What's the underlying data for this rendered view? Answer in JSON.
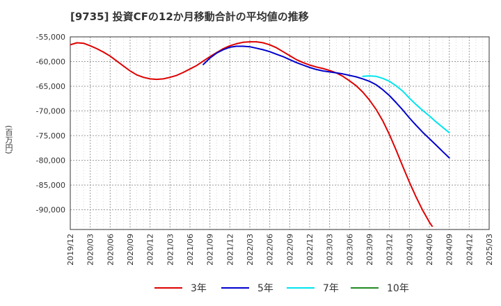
{
  "title": "[9735]  投資CFの12か月移動合計の平均値の推移",
  "unit": "(百万円)",
  "chart_data": {
    "type": "line",
    "title": "[9735]  投資CFの12か月移動合計の平均値の推移",
    "ylabel": "(百万円)",
    "ylim": [
      -95000,
      -55000
    ],
    "grid": true,
    "legend": "bottom",
    "x_ticks": [
      "2019/12",
      "2020/03",
      "2020/06",
      "2020/09",
      "2020/12",
      "2021/03",
      "2021/06",
      "2021/09",
      "2021/12",
      "2022/03",
      "2022/06",
      "2022/09",
      "2022/12",
      "2023/03",
      "2023/06",
      "2023/09",
      "2023/12",
      "2024/03",
      "2024/06",
      "2024/09",
      "2024/12",
      "2025/03"
    ],
    "y_ticks": [
      -55000,
      -60000,
      -65000,
      -70000,
      -75000,
      -80000,
      -85000,
      -90000
    ],
    "y_tick_labels": [
      "-55,000",
      "-60,000",
      "-65,000",
      "-70,000",
      "-75,000",
      "-80,000",
      "-85,000",
      "-90,000"
    ],
    "series": [
      {
        "name": "3年",
        "color": "#dd0000",
        "x": [
          "2019/12",
          "2020/01",
          "2020/02",
          "2020/03",
          "2020/04",
          "2020/05",
          "2020/06",
          "2020/07",
          "2020/08",
          "2020/09",
          "2020/10",
          "2020/11",
          "2020/12",
          "2021/01",
          "2021/02",
          "2021/03",
          "2021/04",
          "2021/05",
          "2021/06",
          "2021/07",
          "2021/08",
          "2021/09",
          "2021/10",
          "2021/11",
          "2021/12",
          "2022/01",
          "2022/02",
          "2022/03",
          "2022/04",
          "2022/05",
          "2022/06",
          "2022/07",
          "2022/08",
          "2022/09",
          "2022/10",
          "2022/11",
          "2022/12",
          "2023/01",
          "2023/02",
          "2023/03",
          "2023/04",
          "2023/05",
          "2023/06",
          "2023/07",
          "2023/08",
          "2023/09",
          "2023/10",
          "2023/11",
          "2023/12",
          "2024/01",
          "2024/02",
          "2024/03",
          "2024/04",
          "2024/05",
          "2024/06",
          "2024/07",
          "2024/08",
          "2024/09"
        ],
        "values": [
          -56600,
          -56200,
          -56300,
          -56800,
          -57400,
          -58100,
          -58900,
          -59900,
          -60900,
          -61900,
          -62700,
          -63200,
          -63500,
          -63600,
          -63500,
          -63200,
          -62800,
          -62200,
          -61500,
          -60800,
          -59900,
          -59000,
          -58200,
          -57400,
          -56800,
          -56400,
          -56100,
          -56000,
          -56000,
          -56200,
          -56600,
          -57200,
          -58000,
          -58800,
          -59600,
          -60200,
          -60700,
          -61100,
          -61400,
          -61800,
          -62300,
          -63000,
          -63900,
          -64900,
          -66200,
          -67800,
          -69700,
          -72000,
          -74800,
          -77900,
          -81200,
          -84400,
          -87400,
          -90100,
          -92500,
          -94500,
          -96000,
          -97000
        ],
        "values_drawn_to": "2024/09"
      },
      {
        "name": "5年",
        "color": "#0000cc",
        "x": [
          "2021/08",
          "2021/09",
          "2021/10",
          "2021/11",
          "2021/12",
          "2022/01",
          "2022/02",
          "2022/03",
          "2022/04",
          "2022/05",
          "2022/06",
          "2022/07",
          "2022/08",
          "2022/09",
          "2022/10",
          "2022/11",
          "2022/12",
          "2023/01",
          "2023/02",
          "2023/03",
          "2023/04",
          "2023/05",
          "2023/06",
          "2023/07",
          "2023/08",
          "2023/09",
          "2023/10",
          "2023/11",
          "2023/12",
          "2024/01",
          "2024/02",
          "2024/03",
          "2024/04",
          "2024/05",
          "2024/06",
          "2024/07",
          "2024/08",
          "2024/09"
        ],
        "values": [
          -60600,
          -59300,
          -58300,
          -57600,
          -57100,
          -56900,
          -56900,
          -57000,
          -57300,
          -57600,
          -58000,
          -58500,
          -59000,
          -59600,
          -60200,
          -60700,
          -61200,
          -61600,
          -61900,
          -62100,
          -62300,
          -62500,
          -62800,
          -63100,
          -63500,
          -64000,
          -64700,
          -65700,
          -66900,
          -68300,
          -69800,
          -71400,
          -72900,
          -74300,
          -75600,
          -76900,
          -78200,
          -79500
        ]
      },
      {
        "name": "7年",
        "color": "#00e5ee",
        "x": [
          "2023/08",
          "2023/09",
          "2023/10",
          "2023/11",
          "2023/12",
          "2024/01",
          "2024/02",
          "2024/03",
          "2024/04",
          "2024/05",
          "2024/06",
          "2024/07",
          "2024/08",
          "2024/09"
        ],
        "values": [
          -63000,
          -62900,
          -63000,
          -63400,
          -64000,
          -64900,
          -66000,
          -67400,
          -68700,
          -69900,
          -71000,
          -72200,
          -73300,
          -74400
        ]
      },
      {
        "name": "10年",
        "color": "#228822",
        "x": [],
        "values": []
      }
    ]
  }
}
